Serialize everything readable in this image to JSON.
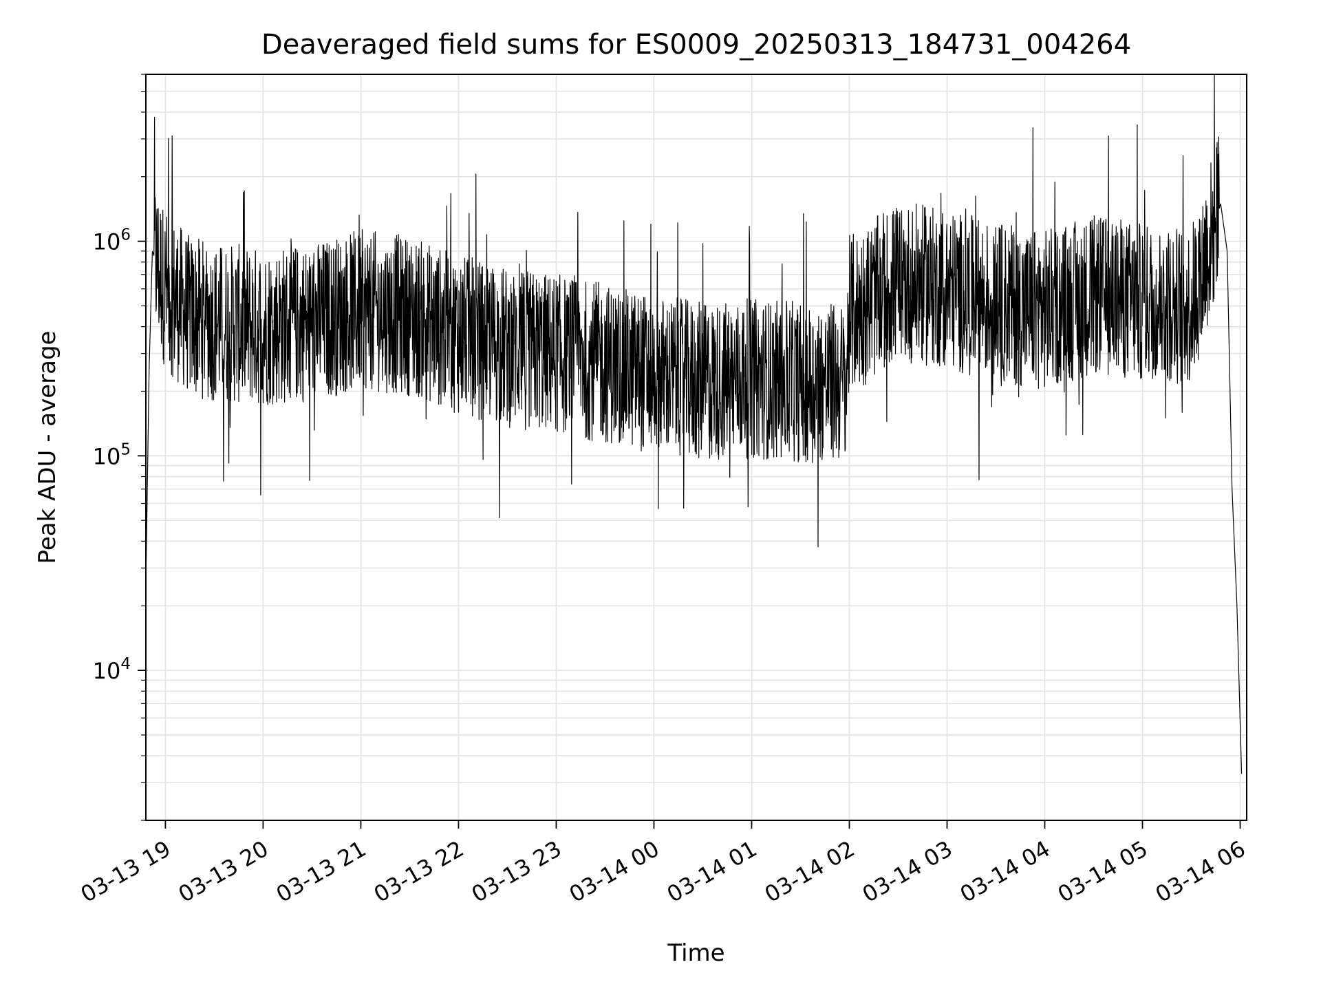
{
  "chart_data": {
    "type": "line",
    "title": "Deaveraged field sums for ES0009_20250313_184731_004264",
    "xlabel": "Time",
    "ylabel": "Peak ADU - average",
    "yscale": "log",
    "ylim": [
      2000,
      6000000
    ],
    "xlim": [
      "2025-03-13 18:48",
      "2025-03-14 06:04"
    ],
    "x_tick_labels": [
      "03-13 19",
      "03-13 20",
      "03-13 21",
      "03-13 22",
      "03-13 23",
      "03-14 00",
      "03-14 01",
      "03-14 02",
      "03-14 03",
      "03-14 04",
      "03-14 05",
      "03-14 06"
    ],
    "y_tick_labels": [
      {
        "base": "10",
        "exp": "4",
        "value": 10000
      },
      {
        "base": "10",
        "exp": "5",
        "value": 100000
      },
      {
        "base": "10",
        "exp": "6",
        "value": 1000000
      }
    ],
    "grid": true,
    "line_color": "#000000",
    "series": [
      {
        "values": [
          {
            "x": "2025-03-13 18:48",
            "y": 25000
          },
          {
            "x": "2025-03-13 18:50",
            "y": 250000
          },
          {
            "x": "2025-03-13 18:52",
            "y": 900000
          },
          {
            "x": "2025-03-13 19:00",
            "y": 600000
          },
          {
            "x": "2025-03-13 19:15",
            "y": 450000
          },
          {
            "x": "2025-03-13 19:30",
            "y": 420000
          },
          {
            "x": "2025-03-13 20:00",
            "y": 400000
          },
          {
            "x": "2025-03-13 20:30",
            "y": 420000
          },
          {
            "x": "2025-03-13 21:00",
            "y": 480000
          },
          {
            "x": "2025-03-13 21:30",
            "y": 450000
          },
          {
            "x": "2025-03-13 22:00",
            "y": 370000
          },
          {
            "x": "2025-03-13 22:30",
            "y": 320000
          },
          {
            "x": "2025-03-13 23:00",
            "y": 300000
          },
          {
            "x": "2025-03-13 23:30",
            "y": 270000
          },
          {
            "x": "2025-03-14 00:00",
            "y": 240000
          },
          {
            "x": "2025-03-14 00:30",
            "y": 220000
          },
          {
            "x": "2025-03-14 01:00",
            "y": 230000
          },
          {
            "x": "2025-03-14 01:30",
            "y": 220000
          },
          {
            "x": "2025-03-14 01:58",
            "y": 220000
          },
          {
            "x": "2025-03-14 02:00",
            "y": 450000
          },
          {
            "x": "2025-03-14 02:30",
            "y": 650000
          },
          {
            "x": "2025-03-14 03:00",
            "y": 600000
          },
          {
            "x": "2025-03-14 03:30",
            "y": 520000
          },
          {
            "x": "2025-03-14 04:00",
            "y": 480000
          },
          {
            "x": "2025-03-14 04:30",
            "y": 560000
          },
          {
            "x": "2025-03-14 05:00",
            "y": 520000
          },
          {
            "x": "2025-03-14 05:30",
            "y": 500000
          },
          {
            "x": "2025-03-14 05:48",
            "y": 1500000
          },
          {
            "x": "2025-03-14 05:52",
            "y": 900000
          },
          {
            "x": "2025-03-14 05:55",
            "y": 70000
          },
          {
            "x": "2025-03-14 05:58",
            "y": 20000
          },
          {
            "x": "2025-03-14 06:01",
            "y": 3000
          }
        ]
      }
    ]
  }
}
